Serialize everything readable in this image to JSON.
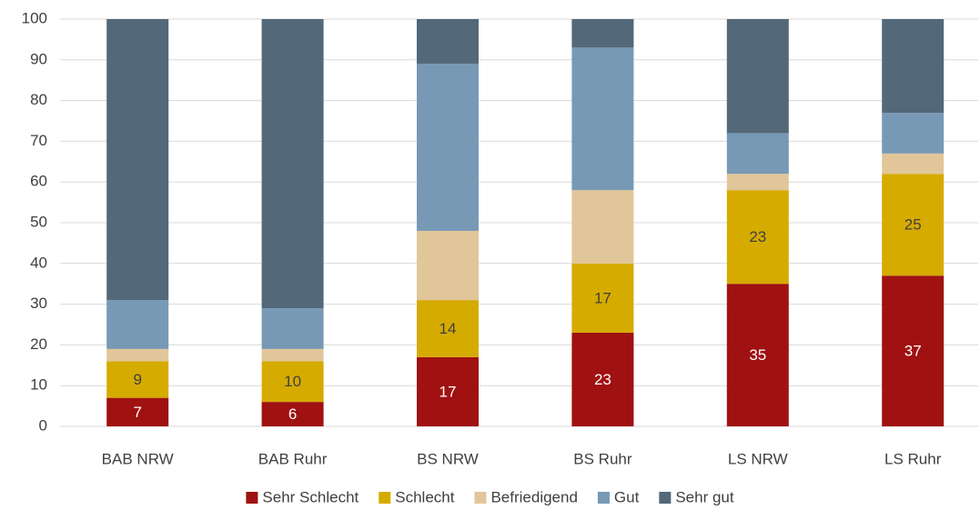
{
  "chart_data": {
    "type": "stacked_bar",
    "categories": [
      "BAB NRW",
      "BAB Ruhr",
      "BS NRW",
      "BS Ruhr",
      "LS NRW",
      "LS Ruhr"
    ],
    "series": [
      {
        "name": "Sehr Schlecht",
        "color": "#a01111",
        "label_color": "#ffffff",
        "values": [
          7,
          6,
          17,
          23,
          35,
          37
        ]
      },
      {
        "name": "Schlecht",
        "color": "#d6ab00",
        "label_color": "#404040",
        "values": [
          9,
          10,
          14,
          17,
          23,
          25
        ]
      },
      {
        "name": "Befriedigend",
        "color": "#e1c699",
        "values": [
          3,
          3,
          17,
          18,
          4,
          5
        ]
      },
      {
        "name": "Gut",
        "color": "#7899b5",
        "values": [
          12,
          10,
          41,
          35,
          10,
          10
        ]
      },
      {
        "name": "Sehr gut",
        "color": "#536878",
        "values": [
          69,
          71,
          11,
          7,
          28,
          23
        ]
      }
    ],
    "ylim": [
      0,
      100
    ],
    "yticks": [
      0,
      10,
      20,
      30,
      40,
      50,
      60,
      70,
      80,
      90,
      100
    ],
    "grid": true
  }
}
